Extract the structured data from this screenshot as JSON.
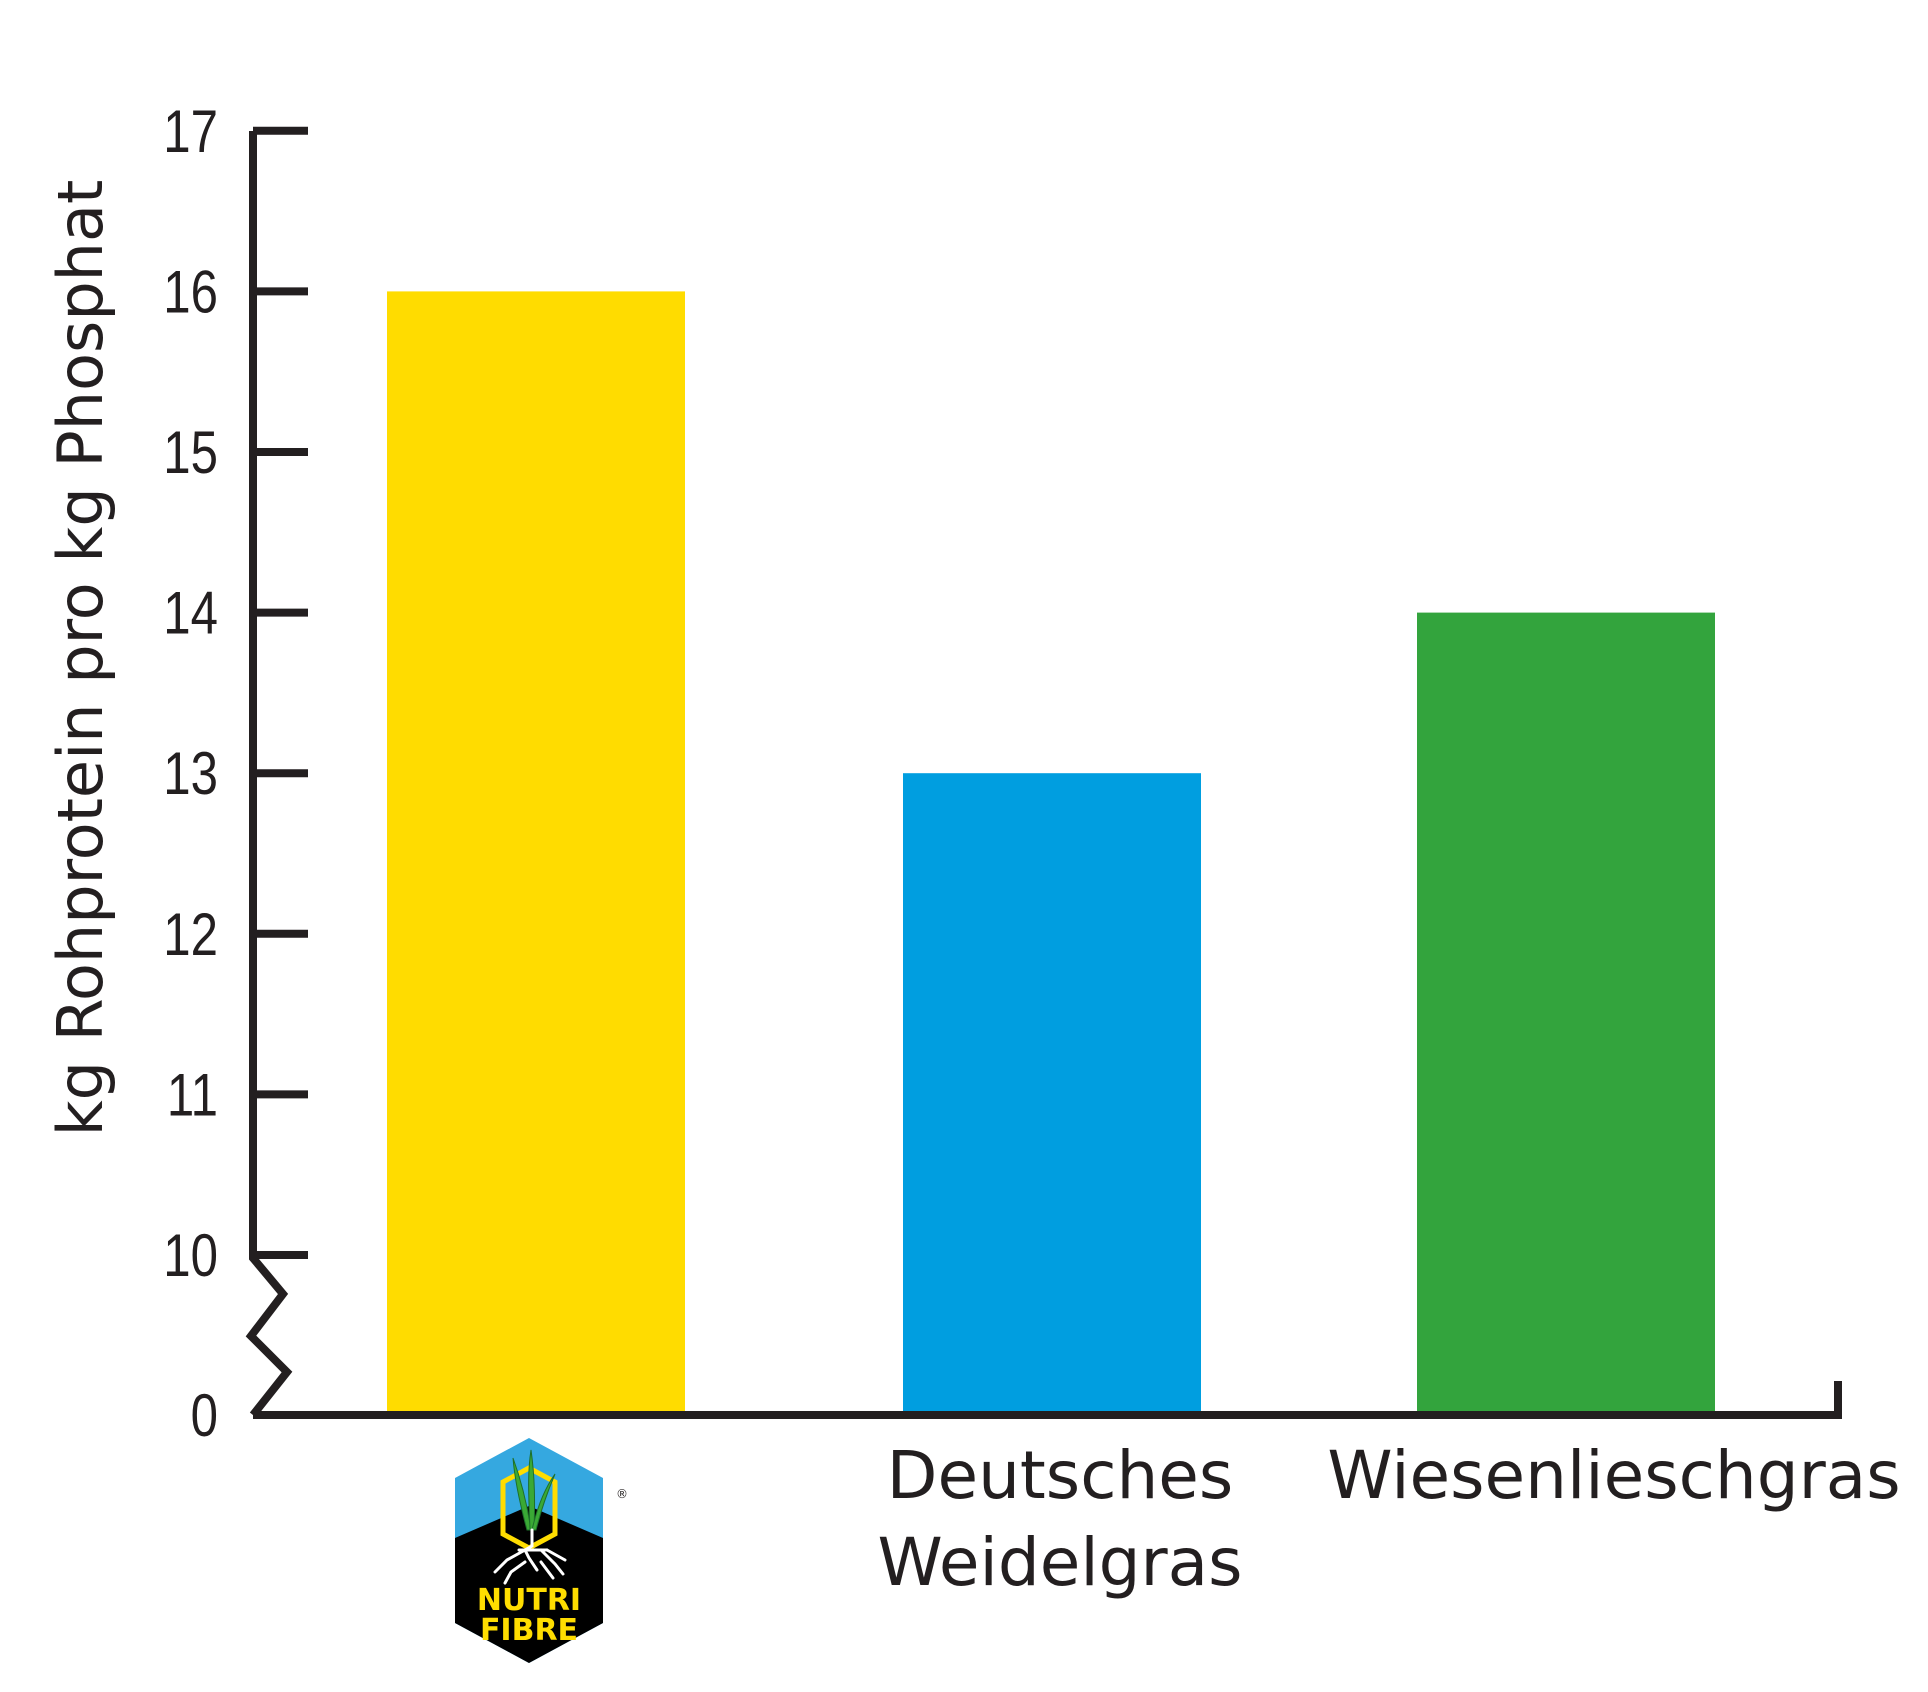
{
  "chart_data": {
    "type": "bar",
    "title": "",
    "xlabel": "",
    "ylabel": "kg Rohprotein pro kg Phosphat",
    "categories": [
      "NUTRI FIBRE",
      "Deutsches Weidelgras",
      "Wiesenlieschgras"
    ],
    "category_label_lines": [
      [],
      [
        "Deutsches",
        "Weidelgras"
      ],
      [
        "Wiesenlieschgras"
      ]
    ],
    "values": [
      16,
      13,
      14
    ],
    "colors": [
      "#ffdc00",
      "#009ee0",
      "#33a43d"
    ],
    "ylim": [
      10,
      17
    ],
    "axis_break": true,
    "yticks": [
      0,
      10,
      11,
      12,
      13,
      14,
      15,
      16,
      17
    ],
    "grid": false,
    "legend": null
  },
  "logo": {
    "line1": "NUTRI",
    "line2": "FIBRE",
    "registered": "®"
  },
  "colors": {
    "axis": "#231f20",
    "logo_sky": "#35a8e0",
    "logo_soil": "#000000",
    "logo_text": "#ffdd00",
    "logo_leaf": "#3aa935"
  }
}
